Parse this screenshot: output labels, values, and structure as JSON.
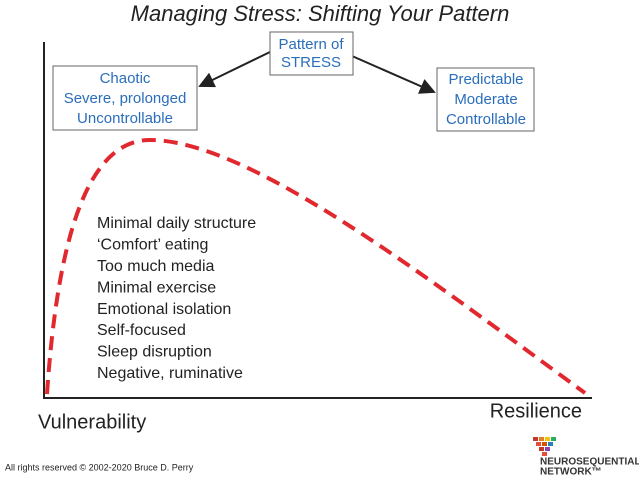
{
  "title": "Managing Stress: Shifting Your Pattern",
  "center_box": {
    "lines": [
      "Pattern of",
      "STRESS"
    ]
  },
  "left_box": {
    "lines": [
      "Chaotic",
      "Severe, prolonged",
      "Uncontrollable"
    ]
  },
  "right_box": {
    "lines": [
      "Predictable",
      "Moderate",
      "Controllable"
    ]
  },
  "list": [
    "Minimal daily structure",
    "‘Comfort’ eating",
    "Too much media",
    "Minimal exercise",
    "Emotional isolation",
    "Self-focused",
    "Sleep disruption",
    "Negative, ruminative"
  ],
  "axis": {
    "left_label": "Vulnerability",
    "right_label": "Resilience"
  },
  "footer": "All rights reserved © 2002-2020 Bruce D. Perry",
  "logo": {
    "lines": [
      "NEUROSEQUENTIAL",
      "NETWORK™"
    ]
  }
}
